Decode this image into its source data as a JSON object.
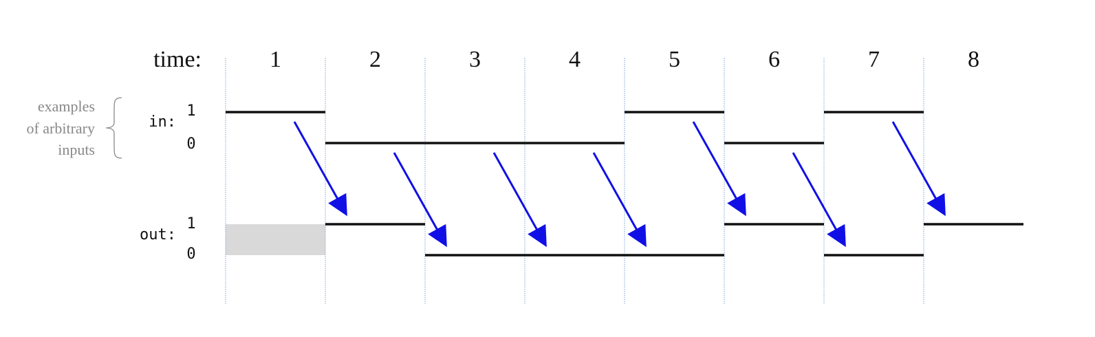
{
  "time_label": "time:",
  "time_steps": [
    {
      "label": "1",
      "input": 1,
      "output": null
    },
    {
      "label": "2",
      "input": 0,
      "output": 1
    },
    {
      "label": "3",
      "input": 0,
      "output": 0
    },
    {
      "label": "4",
      "input": 0,
      "output": 0
    },
    {
      "label": "5",
      "input": 1,
      "output": 0
    },
    {
      "label": "6",
      "input": 0,
      "output": 1
    },
    {
      "label": "7",
      "input": 1,
      "output": 0
    },
    {
      "label": "8",
      "input": null,
      "output": 1
    }
  ],
  "input_signal": {
    "name": "in:",
    "high_label": "1",
    "low_label": "0"
  },
  "output_signal": {
    "name": "out:",
    "high_label": "1",
    "low_label": "0"
  },
  "annotation": {
    "line1": "examples",
    "line2": "of arbitrary",
    "line3": "inputs"
  },
  "colors": {
    "arrow": "#1010e6",
    "signal": "#111111",
    "gridline": "#7aa3d6",
    "unknown_fill": "#d9d9d9",
    "annotation_text": "#888888"
  }
}
